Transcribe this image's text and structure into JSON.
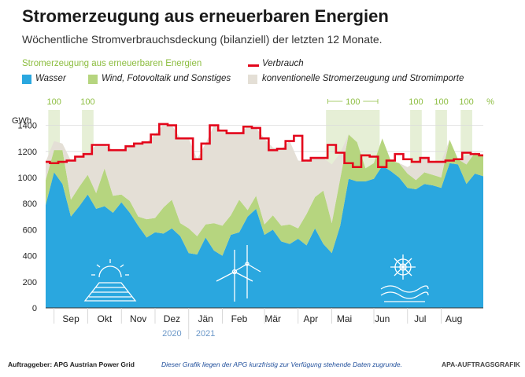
{
  "header": {
    "title": "Stromerzeugung aus erneuerbaren Energien",
    "subtitle": "Wöchentliche Stromverbrauchsdeckung (bilanziell) der letzten 12 Monate."
  },
  "legend": {
    "group_label": "Stromerzeugung aus erneuerbaren Energien",
    "water": "Wasser",
    "wind": "Wind, Fotovoltaik und Sonstiges",
    "consumption": "Verbrauch",
    "conventional": "konventionelle Stromerzeugung und Stromimporte"
  },
  "footer": {
    "client": "Auftraggeber: APG Austrian Power Grid",
    "note": "Dieser Grafik liegen der APG kurzfristig zur Verfügung stehende Daten zugrunde.",
    "credit": "APA-AUFTRAGSGRAFIK"
  },
  "colors": {
    "water": "#2aa7df",
    "wind": "#b6d57f",
    "conventional": "#e4dfd6",
    "consumption": "#e3061b",
    "hundred_band": "#e6efd6",
    "hundred_text": "#8cbd3f"
  },
  "chart_data": {
    "type": "area",
    "ylabel": "GWh",
    "ylim": [
      0,
      1500
    ],
    "yticks": [
      0,
      200,
      400,
      600,
      800,
      1000,
      1200,
      1400
    ],
    "month_labels": [
      "Sep",
      "Okt",
      "Nov",
      "Dez",
      "Jän",
      "Feb",
      "Mär",
      "Apr",
      "Mai",
      "Jun",
      "Jul",
      "Aug"
    ],
    "month_label_weeks": [
      3,
      7,
      11,
      15,
      19,
      23,
      27,
      31.5,
      35.5,
      40,
      44.5,
      48.5
    ],
    "month_separator_weeks": [
      1,
      5,
      9,
      13,
      17,
      21,
      26,
      30,
      34,
      39,
      43,
      47
    ],
    "year_labels": [
      {
        "label": "2020",
        "week": 15
      },
      {
        "label": "2021",
        "week": 19
      }
    ],
    "year_separator_week": 17,
    "hundred_weeks": [
      1,
      5,
      34,
      35,
      36,
      37,
      38,
      39,
      44,
      47,
      50
    ],
    "hundred_labels": [
      {
        "label": "100",
        "week": 1
      },
      {
        "label": "100",
        "week": 5
      },
      {
        "label": "100",
        "week": 36.5
      },
      {
        "label": "100",
        "week": 44
      },
      {
        "label": "100",
        "week": 47
      },
      {
        "label": "100",
        "week": 50
      }
    ],
    "hundred_range": {
      "from": 34,
      "to": 39
    },
    "percent_sign": "%",
    "series": [
      {
        "name": "Wasser",
        "values": [
          790,
          1040,
          950,
          700,
          780,
          870,
          760,
          780,
          730,
          810,
          730,
          630,
          540,
          580,
          570,
          610,
          550,
          420,
          410,
          540,
          440,
          400,
          560,
          580,
          700,
          760,
          560,
          600,
          510,
          490,
          530,
          480,
          610,
          490,
          420,
          630,
          990,
          970,
          970,
          990,
          1090,
          1050,
          1000,
          920,
          910,
          950,
          940,
          920,
          1110,
          1100,
          950,
          1030,
          1010
        ]
      },
      {
        "name": "Wind, Fotovoltaik und Sonstiges",
        "values": [
          190,
          170,
          260,
          130,
          150,
          150,
          120,
          290,
          130,
          60,
          90,
          70,
          140,
          110,
          200,
          220,
          100,
          190,
          140,
          100,
          210,
          230,
          150,
          250,
          50,
          100,
          80,
          110,
          120,
          150,
          80,
          240,
          240,
          410,
          230,
          360,
          340,
          300,
          100,
          120,
          210,
          80,
          110,
          110,
          70,
          90,
          80,
          80,
          180,
          40,
          150,
          160,
          160
        ]
      },
      {
        "name": "konventionelle Stromerzeugung und Stromimporte",
        "values": [
          140,
          70,
          50,
          300,
          230,
          160,
          370,
          180,
          350,
          340,
          420,
          560,
          590,
          640,
          640,
          570,
          650,
          690,
          590,
          620,
          750,
          730,
          630,
          510,
          640,
          520,
          660,
          520,
          590,
          640,
          520,
          400,
          300,
          250,
          450,
          200,
          0,
          0,
          0,
          0,
          0,
          0,
          0,
          50,
          140,
          110,
          100,
          120,
          0,
          0,
          70,
          0,
          0
        ]
      },
      {
        "name": "Verbrauch",
        "values": [
          1120,
          1110,
          1120,
          1130,
          1160,
          1180,
          1250,
          1250,
          1210,
          1210,
          1240,
          1260,
          1270,
          1330,
          1410,
          1400,
          1300,
          1300,
          1140,
          1260,
          1400,
          1360,
          1340,
          1340,
          1390,
          1380,
          1300,
          1210,
          1220,
          1280,
          1320,
          1130,
          1150,
          1150,
          1250,
          1190,
          1110,
          1080,
          1170,
          1160,
          1080,
          1130,
          1180,
          1140,
          1120,
          1150,
          1120,
          1120,
          1130,
          1140,
          1190,
          1180,
          1170
        ]
      }
    ]
  }
}
